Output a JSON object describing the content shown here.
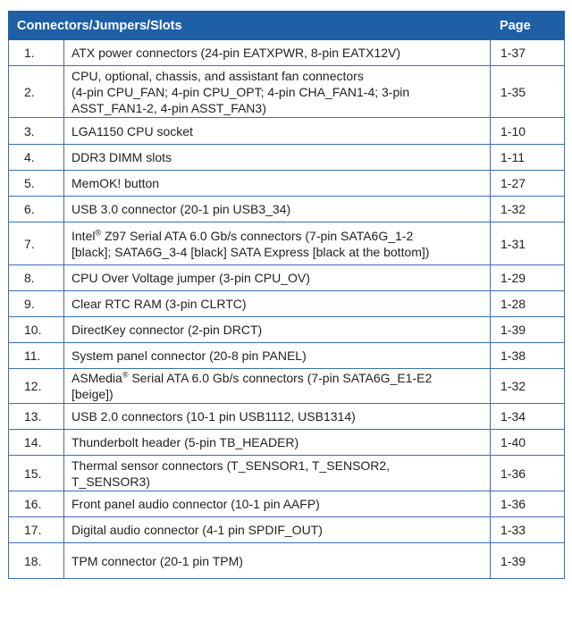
{
  "header": {
    "title": "Connectors/Jumpers/Slots",
    "page": "Page"
  },
  "rows": [
    {
      "num": "1.",
      "lines": [
        "ATX power connectors (24-pin EATXPWR, 8-pin EATX12V)"
      ],
      "page": "1-37"
    },
    {
      "num": "2.",
      "lines": [
        "CPU, optional, chassis, and assistant fan connectors",
        "(4-pin CPU_FAN; 4-pin CPU_OPT; 4-pin CHA_FAN1-4; 3-pin",
        "ASST_FAN1-2, 4-pin ASST_FAN3)"
      ],
      "page": "1-35"
    },
    {
      "num": "3.",
      "lines": [
        "LGA1150 CPU socket"
      ],
      "page": "1-10"
    },
    {
      "num": "4.",
      "lines": [
        "DDR3 DIMM slots"
      ],
      "page": "1-11"
    },
    {
      "num": "5.",
      "lines": [
        "MemOK! button"
      ],
      "page": "1-27"
    },
    {
      "num": "6.",
      "lines": [
        "USB 3.0 connector (20-1 pin USB3_34)"
      ],
      "page": "1-32"
    },
    {
      "num": "7.",
      "lines": [
        "Intel® Z97 Serial ATA 6.0 Gb/s connectors (7-pin SATA6G_1-2",
        "[black]; SATA6G_3-4 [black] SATA Express [black at the bottom])"
      ],
      "page": "1-31"
    },
    {
      "num": "8.",
      "lines": [
        "CPU Over Voltage jumper (3-pin CPU_OV)"
      ],
      "page": "1-29"
    },
    {
      "num": "9.",
      "lines": [
        "Clear RTC RAM (3-pin CLRTC)"
      ],
      "page": "1-28"
    },
    {
      "num": "10.",
      "lines": [
        "DirectKey connector (2-pin DRCT)"
      ],
      "page": "1-39"
    },
    {
      "num": "11.",
      "lines": [
        "System panel connector (20-8 pin PANEL)"
      ],
      "page": "1-38"
    },
    {
      "num": "12.",
      "lines": [
        "ASMedia® Serial ATA 6.0 Gb/s connectors (7-pin SATA6G_E1-E2",
        "[beige])"
      ],
      "page": "1-32"
    },
    {
      "num": "13.",
      "lines": [
        "USB 2.0 connectors (10-1 pin USB1112, USB1314)"
      ],
      "page": "1-34"
    },
    {
      "num": "14.",
      "lines": [
        "Thunderbolt header (5-pin TB_HEADER)"
      ],
      "page": "1-40"
    },
    {
      "num": "15.",
      "lines": [
        "Thermal sensor connectors (T_SENSOR1, T_SENSOR2,",
        "T_SENSOR3)"
      ],
      "page": "1-36"
    },
    {
      "num": "16.",
      "lines": [
        "Front panel audio connector (10-1 pin AAFP)"
      ],
      "page": "1-36"
    },
    {
      "num": "17.",
      "lines": [
        "Digital audio connector (4-1 pin SPDIF_OUT)"
      ],
      "page": "1-33"
    },
    {
      "num": "18.",
      "lines": [
        "TPM connector (20-1 pin TPM)"
      ],
      "page": "1-39"
    }
  ],
  "colors": {
    "header_bg": "#1f5fa6",
    "border": "#3a6fb0",
    "text": "#222222"
  }
}
